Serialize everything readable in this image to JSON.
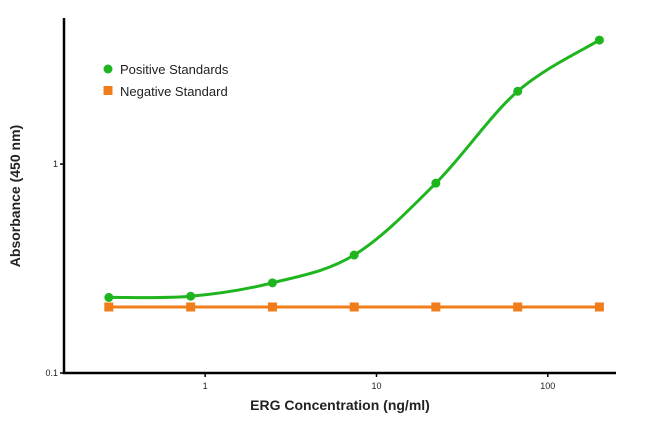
{
  "chart_data": {
    "type": "line",
    "title": "",
    "xlabel": "ERG Concentration (ng/ml)",
    "ylabel": "Absorbance (450 nm)",
    "xscale": "log",
    "yscale": "log",
    "xlim": [
      0.15,
      250
    ],
    "ylim": [
      0.1,
      5
    ],
    "xticks": [
      {
        "value": 1,
        "label": "1"
      },
      {
        "value": 10,
        "label": "10"
      },
      {
        "value": 100,
        "label": "100"
      }
    ],
    "yticks": [
      {
        "value": 0.1,
        "label": "0.1"
      },
      {
        "value": 1,
        "label": "1"
      }
    ],
    "grid": false,
    "legend_position": "top-left",
    "x": [
      0.274,
      0.823,
      2.47,
      7.41,
      22.2,
      66.7,
      200
    ],
    "series": [
      {
        "name": "Positive Standards",
        "color": "#1fb51f",
        "marker": "circle",
        "smooth": true,
        "values": [
          0.23,
          0.233,
          0.27,
          0.367,
          0.81,
          2.23,
          3.92
        ]
      },
      {
        "name": "Negative Standard",
        "color": "#f07d1a",
        "marker": "square",
        "smooth": false,
        "values": [
          0.207,
          0.207,
          0.207,
          0.207,
          0.207,
          0.207,
          0.207
        ]
      }
    ]
  }
}
